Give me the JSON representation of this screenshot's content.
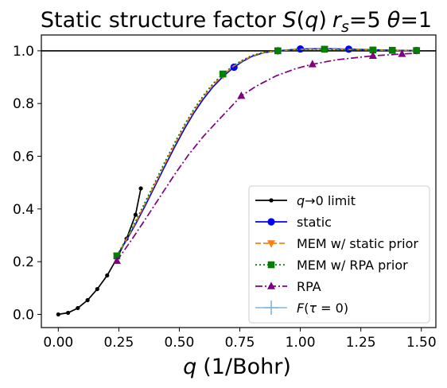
{
  "chart_data": {
    "type": "line",
    "title": "Static structure factor S(q) r_s=5 θ=1",
    "title_parts": {
      "prefix": "Static structure factor ",
      "S": "S",
      "open_paren": "(",
      "q": "q",
      "close_paren": ")",
      "r": "r",
      "r_sub": "s",
      "r_value": "=5",
      "theta": "θ",
      "theta_value": "=1"
    },
    "xlabel": "q (1/Bohr)",
    "xlabel_parts": {
      "symbol": "q",
      "unit": "(1/Bohr)"
    },
    "ylabel": "",
    "xlim": [
      -0.07,
      1.56
    ],
    "ylim": [
      -0.05,
      1.06
    ],
    "xticks": [
      "0.00",
      "0.25",
      "0.50",
      "0.75",
      "1.00",
      "1.25",
      "1.50"
    ],
    "xtick_values": [
      0.0,
      0.25,
      0.5,
      0.75,
      1.0,
      1.25,
      1.5
    ],
    "yticks": [
      "0.0",
      "0.2",
      "0.4",
      "0.6",
      "0.8",
      "1.0"
    ],
    "ytick_values": [
      0.0,
      0.2,
      0.4,
      0.6,
      0.8,
      1.0
    ],
    "reference_line": {
      "y": 1.0,
      "color": "#000000"
    },
    "grid": false,
    "legend_position": "lower right",
    "series": [
      {
        "name": "q→0 limit",
        "legend_parts": {
          "symbol": "q",
          "arrow": "→",
          "rest": "0 limit"
        },
        "color": "#000000",
        "linestyle": "solid",
        "marker": "dot",
        "x": [
          0.0,
          0.0403,
          0.0806,
          0.121,
          0.161,
          0.202,
          0.242,
          0.282,
          0.319,
          0.341
        ],
        "y": [
          0.0,
          0.006,
          0.024,
          0.054,
          0.096,
          0.148,
          0.212,
          0.287,
          0.378,
          0.478
        ]
      },
      {
        "name": "static",
        "color": "#0000ff",
        "linestyle": "solid",
        "marker": "circle",
        "x": [
          0.242,
          0.28,
          0.32,
          0.36,
          0.4,
          0.44,
          0.48,
          0.52,
          0.56,
          0.6,
          0.64,
          0.68,
          0.726,
          0.76,
          0.8,
          0.85,
          0.907,
          1.0,
          1.1,
          1.2,
          1.3,
          1.38,
          1.48
        ],
        "y": [
          0.222,
          0.279,
          0.344,
          0.414,
          0.488,
          0.562,
          0.634,
          0.702,
          0.764,
          0.818,
          0.864,
          0.902,
          0.938,
          0.959,
          0.979,
          0.993,
          1.0,
          1.007,
          1.008,
          1.006,
          1.004,
          1.002,
          1.001
        ],
        "marker_indices": [
          12,
          16,
          17,
          19,
          22
        ]
      },
      {
        "name": "MEM w/ static prior",
        "color": "#ff7f0e",
        "linestyle": "dashed",
        "marker": "triangle-down",
        "x": [
          0.242,
          0.28,
          0.32,
          0.36,
          0.4,
          0.44,
          0.48,
          0.52,
          0.56,
          0.6,
          0.64,
          0.68,
          0.726,
          0.76,
          0.8,
          0.85,
          0.907,
          1.0,
          1.1,
          1.2,
          1.3,
          1.38,
          1.48
        ],
        "y": [
          0.222,
          0.283,
          0.35,
          0.422,
          0.496,
          0.571,
          0.643,
          0.711,
          0.772,
          0.826,
          0.871,
          0.908,
          0.943,
          0.962,
          0.981,
          0.994,
          1.0,
          1.006,
          1.007,
          1.005,
          1.003,
          1.002,
          1.001
        ],
        "marker_indices": [
          0,
          11,
          16,
          18,
          20,
          22
        ]
      },
      {
        "name": "MEM w/ RPA prior",
        "color": "#008000",
        "linestyle": "dotted",
        "marker": "square",
        "x": [
          0.242,
          0.28,
          0.32,
          0.36,
          0.4,
          0.44,
          0.48,
          0.52,
          0.56,
          0.6,
          0.64,
          0.68,
          0.726,
          0.76,
          0.8,
          0.85,
          0.907,
          1.0,
          1.1,
          1.2,
          1.3,
          1.38,
          1.48
        ],
        "y": [
          0.222,
          0.286,
          0.355,
          0.428,
          0.503,
          0.578,
          0.65,
          0.717,
          0.778,
          0.831,
          0.876,
          0.912,
          0.946,
          0.964,
          0.982,
          0.995,
          1.0,
          1.006,
          1.006,
          1.004,
          1.003,
          1.002,
          1.001
        ],
        "marker_indices": [
          0,
          11,
          16,
          18,
          20,
          21,
          22
        ]
      },
      {
        "name": "RPA",
        "color": "#800080",
        "linestyle": "dashdot",
        "marker": "triangle-up",
        "x": [
          0.242,
          0.3,
          0.36,
          0.42,
          0.48,
          0.54,
          0.6,
          0.66,
          0.756,
          0.82,
          0.9,
          0.98,
          1.05,
          1.15,
          1.3,
          1.42,
          1.48
        ],
        "y": [
          0.203,
          0.279,
          0.361,
          0.446,
          0.53,
          0.608,
          0.676,
          0.735,
          0.829,
          0.867,
          0.905,
          0.932,
          0.949,
          0.966,
          0.981,
          0.988,
          0.991
        ],
        "marker_indices": [
          0,
          8,
          12,
          14,
          15
        ]
      },
      {
        "name": "F(τ=0)",
        "legend_parts": {
          "symbol": "F",
          "open": "(",
          "tau": "τ",
          "rest": " = 0)"
        },
        "color": "#7fb6dd",
        "linestyle": "solid",
        "marker": "plus-errorbar",
        "x": [],
        "y": []
      }
    ]
  }
}
